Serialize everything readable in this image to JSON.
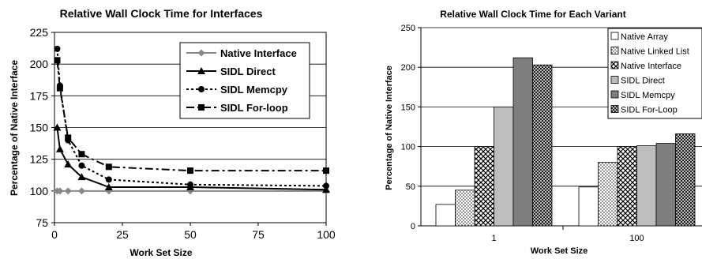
{
  "chart_data": [
    {
      "type": "line",
      "title": "Relative Wall Clock Time for Interfaces",
      "xlabel": "Work Set Size",
      "ylabel": "Percentage of Native Interface",
      "xlim": [
        0,
        100
      ],
      "ylim": [
        75,
        225
      ],
      "xticks": [
        0,
        25,
        50,
        75,
        100
      ],
      "yticks": [
        75,
        100,
        125,
        150,
        175,
        200,
        225
      ],
      "grid": "horizontal",
      "legend_position": "top-right",
      "series": [
        {
          "name": "Native Interface",
          "marker": "diamond",
          "dash": "solid",
          "color": "#888888",
          "x": [
            1,
            2,
            5,
            10,
            20,
            50,
            100
          ],
          "y": [
            100,
            100,
            100,
            100,
            100,
            100,
            100
          ]
        },
        {
          "name": "SIDL Direct",
          "marker": "triangle",
          "dash": "solid",
          "color": "#000000",
          "x": [
            1,
            2,
            5,
            10,
            20,
            50,
            100
          ],
          "y": [
            150,
            133,
            121,
            111,
            103,
            103,
            101
          ]
        },
        {
          "name": "SIDL Memcpy",
          "marker": "circle",
          "dash": "dotted",
          "color": "#000000",
          "x": [
            1,
            2,
            5,
            10,
            20,
            50,
            100
          ],
          "y": [
            212,
            183,
            140,
            120,
            109,
            105,
            104
          ]
        },
        {
          "name": "SIDL For-loop",
          "marker": "square",
          "dash": "dashdot",
          "color": "#000000",
          "x": [
            1,
            2,
            5,
            10,
            20,
            50,
            100
          ],
          "y": [
            203,
            181,
            142,
            129,
            119,
            116,
            116
          ]
        }
      ]
    },
    {
      "type": "bar",
      "title": "Relative Wall Clock Time for Each Variant",
      "xlabel": "Work Set Size",
      "ylabel": "Percentage of Native Interface",
      "ylim": [
        0,
        250
      ],
      "yticks": [
        0,
        50,
        100,
        150,
        200,
        250
      ],
      "grid": "horizontal",
      "legend_position": "top-right",
      "categories": [
        "1",
        "100"
      ],
      "series": [
        {
          "name": "Native Array",
          "pattern": "white",
          "values": [
            27,
            49
          ]
        },
        {
          "name": "Native Linked List",
          "pattern": "dots",
          "values": [
            45,
            80
          ]
        },
        {
          "name": "Native Interface",
          "pattern": "checker",
          "values": [
            100,
            100
          ]
        },
        {
          "name": "SIDL Direct",
          "pattern": "lightgray",
          "values": [
            150,
            101
          ]
        },
        {
          "name": "SIDL Memcpy",
          "pattern": "darkgray",
          "values": [
            212,
            104
          ]
        },
        {
          "name": "SIDL For-Loop",
          "pattern": "darkchecker",
          "values": [
            203,
            116
          ]
        }
      ]
    }
  ]
}
